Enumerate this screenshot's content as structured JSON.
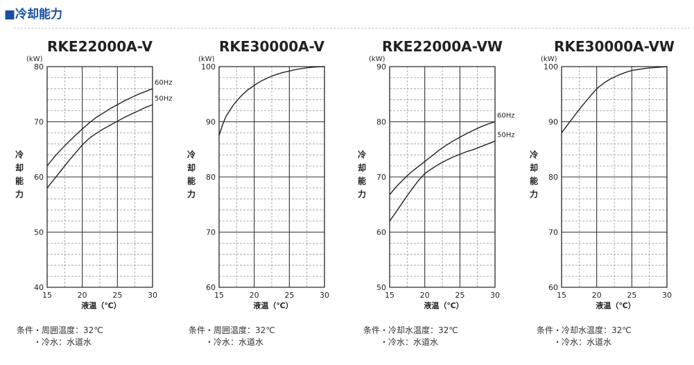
{
  "header": {
    "title": "■冷却能力"
  },
  "chart_data": [
    {
      "type": "line",
      "title": "RKE22000A-V",
      "xlabel": "液温（℃）",
      "ylabel": "冷却能力",
      "yunit": "(kW)",
      "xlim": [
        15,
        30
      ],
      "ylim": [
        40,
        80
      ],
      "xticks": [
        15,
        20,
        25,
        30
      ],
      "yticks": [
        40,
        50,
        60,
        70,
        80
      ],
      "series": [
        {
          "name": "60Hz",
          "x": [
            15,
            16,
            17,
            18,
            19,
            20,
            21,
            22,
            23,
            24,
            25,
            26,
            27,
            28,
            29,
            30
          ],
          "y": [
            62.0,
            63.6,
            65.0,
            66.3,
            67.5,
            68.7,
            69.8,
            70.8,
            71.6,
            72.4,
            73.1,
            73.8,
            74.4,
            75.0,
            75.5,
            76.0
          ]
        },
        {
          "name": "50Hz",
          "x": [
            15,
            16,
            17,
            18,
            19,
            20,
            21,
            22,
            23,
            24,
            25,
            26,
            27,
            28,
            29,
            30
          ],
          "y": [
            58.0,
            59.6,
            61.2,
            62.8,
            64.3,
            65.8,
            67.0,
            67.9,
            68.7,
            69.4,
            70.1,
            70.8,
            71.4,
            72.0,
            72.6,
            73.1
          ]
        }
      ],
      "conditions": [
        "条件・周囲温度：32℃",
        "・冷水：水道水"
      ]
    },
    {
      "type": "line",
      "title": "RKE30000A-V",
      "xlabel": "液温（℃）",
      "ylabel": "冷却能力",
      "yunit": "(kW)",
      "xlim": [
        15,
        30
      ],
      "ylim": [
        60,
        100
      ],
      "xticks": [
        15,
        20,
        25,
        30
      ],
      "yticks": [
        60,
        70,
        80,
        90,
        100
      ],
      "series": [
        {
          "name": "",
          "x": [
            15,
            15.5,
            16,
            17,
            18,
            19,
            20,
            21,
            22,
            23,
            24,
            25,
            26,
            27,
            28,
            29,
            30
          ],
          "y": [
            87.5,
            89.5,
            91.0,
            93.0,
            94.5,
            95.7,
            96.6,
            97.4,
            98.0,
            98.5,
            98.9,
            99.2,
            99.5,
            99.7,
            99.85,
            99.95,
            100.0
          ]
        }
      ],
      "conditions": [
        "条件・周囲温度：32℃",
        "・冷水：水道水"
      ]
    },
    {
      "type": "line",
      "title": "RKE22000A-VW",
      "xlabel": "液温（℃）",
      "ylabel": "冷却能力",
      "yunit": "(kW)",
      "xlim": [
        15,
        30
      ],
      "ylim": [
        50,
        90
      ],
      "xticks": [
        15,
        20,
        25,
        30
      ],
      "yticks": [
        50,
        60,
        70,
        80,
        90
      ],
      "series": [
        {
          "name": "60Hz",
          "x": [
            15,
            16,
            17,
            18,
            19,
            20,
            21,
            22,
            23,
            24,
            25,
            26,
            27,
            28,
            29,
            30
          ],
          "y": [
            66.8,
            68.3,
            69.6,
            70.8,
            71.8,
            72.8,
            73.8,
            74.8,
            75.7,
            76.5,
            77.2,
            77.9,
            78.5,
            79.1,
            79.6,
            80.0
          ]
        },
        {
          "name": "50Hz",
          "x": [
            15,
            16,
            17,
            18,
            19,
            20,
            21,
            22,
            23,
            24,
            25,
            26,
            27,
            28,
            29,
            30
          ],
          "y": [
            62.0,
            63.8,
            65.7,
            67.5,
            69.2,
            70.6,
            71.5,
            72.3,
            73.0,
            73.6,
            74.1,
            74.6,
            75.0,
            75.5,
            76.0,
            76.5
          ]
        }
      ],
      "conditions": [
        "条件・冷却水温度：32℃",
        "・冷水：水道水"
      ]
    },
    {
      "type": "line",
      "title": "RKE30000A-VW",
      "xlabel": "液温（℃）",
      "ylabel": "冷却能力",
      "yunit": "(kW)",
      "xlim": [
        15,
        30
      ],
      "ylim": [
        60,
        100
      ],
      "xticks": [
        15,
        20,
        25,
        30
      ],
      "yticks": [
        60,
        70,
        80,
        90,
        100
      ],
      "series": [
        {
          "name": "",
          "x": [
            15,
            16,
            17,
            18,
            19,
            20,
            21,
            22,
            23,
            24,
            25,
            26,
            27,
            28,
            29,
            30
          ],
          "y": [
            88.0,
            89.7,
            91.4,
            93.0,
            94.5,
            96.0,
            97.0,
            97.8,
            98.4,
            98.9,
            99.3,
            99.5,
            99.7,
            99.8,
            99.9,
            100.0
          ]
        }
      ],
      "conditions": [
        "条件・冷却水温度：32℃",
        "・冷水：水道水"
      ]
    }
  ]
}
